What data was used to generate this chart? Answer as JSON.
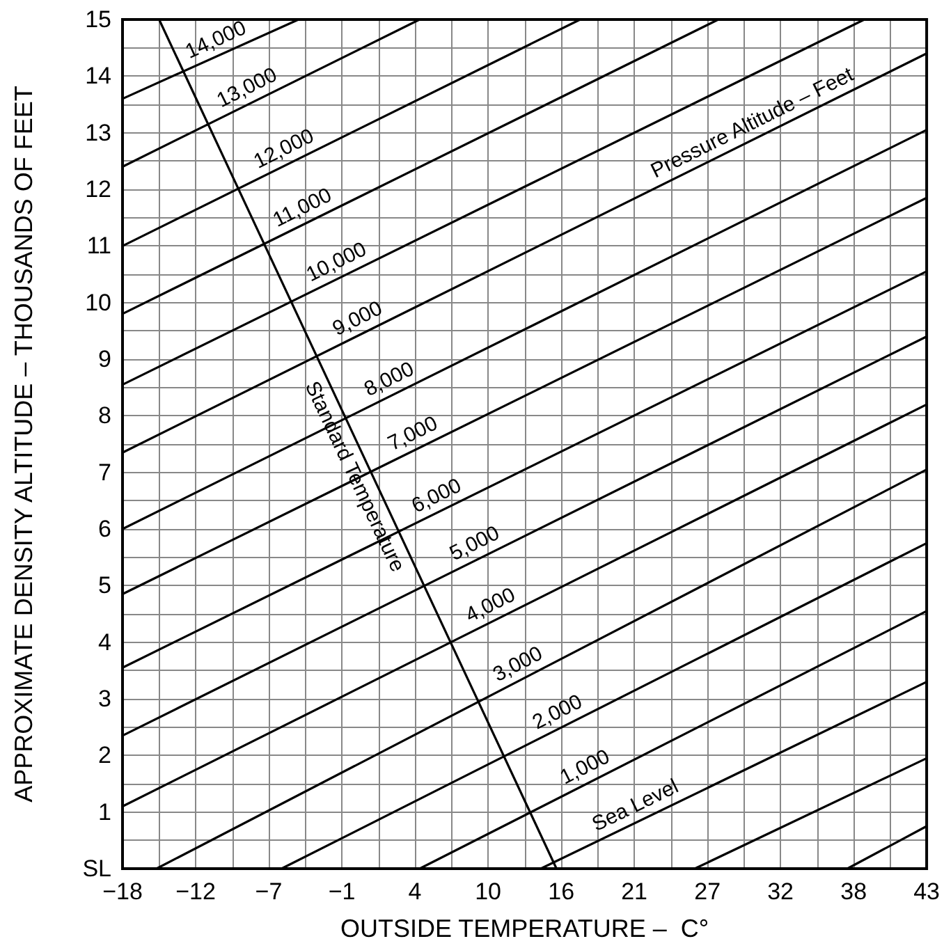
{
  "chart_data": {
    "type": "line",
    "xlabel": "OUTSIDE TEMPERATURE –  C°",
    "ylabel": "APPROXIMATE DENSITY ALTITUDE – THOUSANDS OF FEET",
    "xlim": [
      -17.78,
      43.33
    ],
    "ylim": [
      0,
      15
    ],
    "xticks": [
      {
        "value": -17.78,
        "label": "−18"
      },
      {
        "value": -12.22,
        "label": "−12"
      },
      {
        "value": -6.67,
        "label": "−7"
      },
      {
        "value": -1.11,
        "label": "−1"
      },
      {
        "value": 4.44,
        "label": "4"
      },
      10,
      {
        "value": 15.56,
        "label": "16"
      },
      {
        "value": 21.11,
        "label": "21"
      },
      {
        "value": 26.67,
        "label": "27"
      },
      {
        "value": 32.22,
        "label": "32"
      },
      {
        "value": 37.78,
        "label": "38"
      },
      {
        "value": 43.33,
        "label": "43"
      }
    ],
    "yticks": [
      {
        "value": 0,
        "label": "SL"
      },
      1,
      2,
      3,
      4,
      5,
      6,
      7,
      8,
      9,
      10,
      11,
      12,
      13,
      14,
      15
    ],
    "grid": true,
    "legend": false,
    "marker": "none",
    "line_style": "solid",
    "series": [
      {
        "color": "#000000",
        "x": [
          -17.78,
          -4.4
        ],
        "values": [
          13.6,
          15
        ]
      },
      {
        "color": "#000000",
        "x": [
          -17.78,
          4.8
        ],
        "values": [
          12.4,
          15
        ]
      },
      {
        "color": "#000000",
        "x": [
          -17.78,
          17.0
        ],
        "values": [
          11.0,
          15
        ]
      },
      {
        "color": "#000000",
        "x": [
          -17.78,
          27.5
        ],
        "values": [
          9.8,
          15
        ]
      },
      {
        "color": "#000000",
        "x": [
          -17.78,
          38.6
        ],
        "values": [
          8.55,
          15
        ]
      },
      {
        "color": "#000000",
        "x": [
          -17.78,
          43.33
        ],
        "values": [
          7.35,
          14.4
        ]
      },
      {
        "color": "#000000",
        "x": [
          -17.78,
          43.33
        ],
        "values": [
          6.0,
          13.05
        ]
      },
      {
        "color": "#000000",
        "x": [
          -17.78,
          43.33
        ],
        "values": [
          4.85,
          11.85
        ]
      },
      {
        "color": "#000000",
        "x": [
          -17.78,
          43.33
        ],
        "values": [
          3.55,
          10.55
        ]
      },
      {
        "color": "#000000",
        "x": [
          -17.78,
          43.33
        ],
        "values": [
          2.35,
          9.4
        ]
      },
      {
        "color": "#000000",
        "x": [
          -17.78,
          43.33
        ],
        "values": [
          1.1,
          8.2
        ]
      },
      {
        "color": "#000000",
        "x": [
          -15.2,
          43.33
        ],
        "values": [
          0,
          7.05
        ]
      },
      {
        "color": "#000000",
        "x": [
          -5.7,
          43.33
        ],
        "values": [
          0,
          5.75
        ]
      },
      {
        "color": "#000000",
        "x": [
          4.8,
          43.33
        ],
        "values": [
          0,
          4.55
        ]
      },
      {
        "color": "#000000",
        "x": [
          14.0,
          43.33
        ],
        "values": [
          0,
          3.3
        ]
      },
      {
        "color": "#000000",
        "x": [
          25.7,
          43.33
        ],
        "values": [
          0,
          1.95
        ]
      },
      {
        "color": "#000000",
        "x": [
          37.3,
          43.33
        ],
        "values": [
          0,
          0.75
        ]
      },
      {
        "name": "Standard Temperature",
        "color": "#000000",
        "x": [
          -15.0,
          15.2
        ],
        "values": [
          15,
          0
        ]
      }
    ],
    "annotations": [
      {
        "text": "14,000",
        "x": -10.2,
        "y": 14.39
      },
      {
        "text": "13,000",
        "x": -7.8,
        "y": 13.55
      },
      {
        "text": "12,000",
        "x": -5.0,
        "y": 12.47
      },
      {
        "text": "11,000",
        "x": -3.6,
        "y": 11.43
      },
      {
        "text": "10,000",
        "x": -1.0,
        "y": 10.47
      },
      {
        "text": "9,000",
        "x": 0.6,
        "y": 9.47
      },
      {
        "text": "8,000",
        "x": 3.0,
        "y": 8.4
      },
      {
        "text": "7,000",
        "x": 4.8,
        "y": 7.44
      },
      {
        "text": "6,000",
        "x": 6.6,
        "y": 6.34
      },
      {
        "text": "5,000",
        "x": 9.5,
        "y": 5.5
      },
      {
        "text": "4,000",
        "x": 10.7,
        "y": 4.41
      },
      {
        "text": "3,000",
        "x": 12.8,
        "y": 3.37
      },
      {
        "text": "2,000",
        "x": 15.8,
        "y": 2.52
      },
      {
        "text": "1,000",
        "x": 17.9,
        "y": 1.55
      },
      {
        "text": "Sea Level",
        "x": 21.7,
        "y": 0.87
      },
      {
        "text": "Pressure Altitude – Feet",
        "x": 30.6,
        "y": 12.93
      }
    ]
  }
}
